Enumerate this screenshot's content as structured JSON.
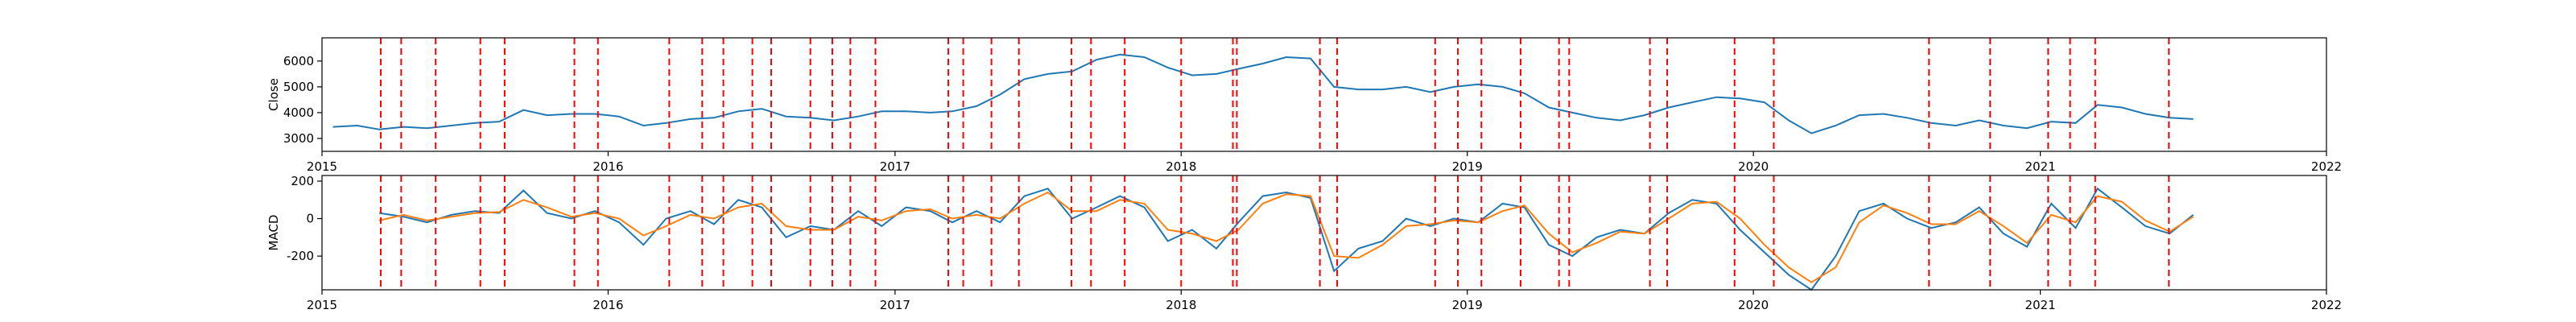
{
  "chart_data": [
    {
      "type": "line",
      "ylabel": "Close",
      "xlim": [
        "2015-01-01",
        "2022-01-01"
      ],
      "ylim": [
        2500,
        6900
      ],
      "yticks": [
        3000,
        4000,
        5000,
        6000
      ],
      "xticks": [
        "2015",
        "2016",
        "2017",
        "2018",
        "2019",
        "2020",
        "2021",
        "2022"
      ],
      "grid": false,
      "series": [
        {
          "color": "#1f77b4",
          "x": [
            "2015-01",
            "2015-02",
            "2015-03",
            "2015-04",
            "2015-05",
            "2015-06",
            "2015-07",
            "2015-08",
            "2015-09",
            "2015-10",
            "2015-11",
            "2015-12",
            "2016-01",
            "2016-02",
            "2016-03",
            "2016-04",
            "2016-05",
            "2016-06",
            "2016-07",
            "2016-08",
            "2016-09",
            "2016-10",
            "2016-11",
            "2016-12",
            "2017-01",
            "2017-02",
            "2017-03",
            "2017-04",
            "2017-05",
            "2017-06",
            "2017-07",
            "2017-08",
            "2017-09",
            "2017-10",
            "2017-11",
            "2017-12",
            "2018-01",
            "2018-02",
            "2018-03",
            "2018-04",
            "2018-05",
            "2018-06",
            "2018-07",
            "2018-08",
            "2018-09",
            "2018-10",
            "2018-11",
            "2018-12",
            "2019-01",
            "2019-02",
            "2019-03",
            "2019-04",
            "2019-05",
            "2019-06",
            "2019-07",
            "2019-08",
            "2019-09",
            "2019-10",
            "2019-11",
            "2019-12",
            "2020-01",
            "2020-02",
            "2020-03",
            "2020-04",
            "2020-05",
            "2020-06",
            "2020-07",
            "2020-08",
            "2020-09",
            "2020-10",
            "2020-11",
            "2020-12",
            "2021-01",
            "2021-02",
            "2021-03",
            "2021-04",
            "2021-05",
            "2021-06",
            "2021-07"
          ],
          "values": [
            3450,
            3500,
            3350,
            3450,
            3400,
            3500,
            3600,
            3650,
            4100,
            3900,
            3950,
            3950,
            3850,
            3500,
            3600,
            3750,
            3800,
            4050,
            4150,
            3850,
            3800,
            3700,
            3850,
            4050,
            4050,
            4000,
            4050,
            4250,
            4700,
            5300,
            5500,
            5600,
            6050,
            6250,
            6150,
            5750,
            5450,
            5500,
            5700,
            5900,
            6150,
            6100,
            5000,
            4900,
            4900,
            5000,
            4800,
            5000,
            5100,
            5000,
            4750,
            4200,
            4000,
            3800,
            3700,
            3900,
            4200,
            4400,
            4600,
            4550,
            4400,
            3700,
            3200,
            3500,
            3900,
            3950,
            3800,
            3600,
            3500,
            3700,
            3500,
            3400,
            3650,
            3600,
            4300,
            4200,
            3950,
            3800,
            3750
          ]
        }
      ],
      "vlines": [
        "2015-03-17",
        "2015-04-12",
        "2015-05-26",
        "2015-07-22",
        "2015-08-22",
        "2015-11-19",
        "2015-12-19",
        "2016-03-19",
        "2016-04-30",
        "2016-05-27",
        "2016-07-03",
        "2016-07-27",
        "2016-09-15",
        "2016-10-13",
        "2016-11-05",
        "2016-12-07",
        "2017-03-10",
        "2017-03-29",
        "2017-05-04",
        "2017-06-08",
        "2017-08-14",
        "2017-09-08",
        "2017-10-21",
        "2018-01-01",
        "2018-03-08",
        "2018-03-13",
        "2018-06-27",
        "2018-07-19",
        "2018-11-21",
        "2018-12-20",
        "2019-01-19",
        "2019-03-10",
        "2019-04-28",
        "2019-05-11",
        "2019-08-22",
        "2019-09-13",
        "2019-12-08",
        "2020-01-27",
        "2020-08-12",
        "2020-10-29",
        "2021-01-11",
        "2021-02-08",
        "2021-03-12",
        "2021-06-14"
      ],
      "vline_color": "#ff0000"
    },
    {
      "type": "line",
      "ylabel": "MACD",
      "xlim": [
        "2015-01-01",
        "2022-01-01"
      ],
      "ylim": [
        -380,
        230
      ],
      "yticks": [
        -200,
        0,
        200
      ],
      "xticks": [
        "2015",
        "2016",
        "2017",
        "2018",
        "2019",
        "2020",
        "2021",
        "2022"
      ],
      "grid": false,
      "series": [
        {
          "color": "#1f77b4",
          "x": [
            "2015-03",
            "2015-04",
            "2015-05",
            "2015-06",
            "2015-07",
            "2015-08",
            "2015-09",
            "2015-10",
            "2015-11",
            "2015-12",
            "2016-01",
            "2016-02",
            "2016-03",
            "2016-04",
            "2016-05",
            "2016-06",
            "2016-07",
            "2016-08",
            "2016-09",
            "2016-10",
            "2016-11",
            "2016-12",
            "2017-01",
            "2017-02",
            "2017-03",
            "2017-04",
            "2017-05",
            "2017-06",
            "2017-07",
            "2017-08",
            "2017-09",
            "2017-10",
            "2017-11",
            "2017-12",
            "2018-01",
            "2018-02",
            "2018-03",
            "2018-04",
            "2018-05",
            "2018-06",
            "2018-07",
            "2018-08",
            "2018-09",
            "2018-10",
            "2018-11",
            "2018-12",
            "2019-01",
            "2019-02",
            "2019-03",
            "2019-04",
            "2019-05",
            "2019-06",
            "2019-07",
            "2019-08",
            "2019-09",
            "2019-10",
            "2019-11",
            "2019-12",
            "2020-01",
            "2020-02",
            "2020-03",
            "2020-04",
            "2020-05",
            "2020-06",
            "2020-07",
            "2020-08",
            "2020-09",
            "2020-10",
            "2020-11",
            "2020-12",
            "2021-01",
            "2021-02",
            "2021-03",
            "2021-04",
            "2021-05",
            "2021-06",
            "2021-07"
          ],
          "values": [
            30,
            10,
            -20,
            20,
            40,
            30,
            150,
            30,
            0,
            40,
            -20,
            -140,
            0,
            40,
            -30,
            100,
            60,
            -100,
            -40,
            -60,
            40,
            -40,
            60,
            40,
            -20,
            40,
            -20,
            120,
            160,
            0,
            60,
            120,
            60,
            -120,
            -60,
            -160,
            -20,
            120,
            140,
            110,
            -280,
            -160,
            -120,
            0,
            -40,
            0,
            -20,
            80,
            60,
            -140,
            -200,
            -100,
            -60,
            -80,
            30,
            100,
            80,
            -60,
            -180,
            -300,
            -380,
            -200,
            40,
            80,
            0,
            -50,
            -20,
            60,
            -80,
            -150,
            80,
            -50,
            160,
            60,
            -40,
            -80,
            20
          ]
        },
        {
          "color": "#ff7f0e",
          "x": [
            "2015-03",
            "2015-04",
            "2015-05",
            "2015-06",
            "2015-07",
            "2015-08",
            "2015-09",
            "2015-10",
            "2015-11",
            "2015-12",
            "2016-01",
            "2016-02",
            "2016-03",
            "2016-04",
            "2016-05",
            "2016-06",
            "2016-07",
            "2016-08",
            "2016-09",
            "2016-10",
            "2016-11",
            "2016-12",
            "2017-01",
            "2017-02",
            "2017-03",
            "2017-04",
            "2017-05",
            "2017-06",
            "2017-07",
            "2017-08",
            "2017-09",
            "2017-10",
            "2017-11",
            "2017-12",
            "2018-01",
            "2018-02",
            "2018-03",
            "2018-04",
            "2018-05",
            "2018-06",
            "2018-07",
            "2018-08",
            "2018-09",
            "2018-10",
            "2018-11",
            "2018-12",
            "2019-01",
            "2019-02",
            "2019-03",
            "2019-04",
            "2019-05",
            "2019-06",
            "2019-07",
            "2019-08",
            "2019-09",
            "2019-10",
            "2019-11",
            "2019-12",
            "2020-01",
            "2020-02",
            "2020-03",
            "2020-04",
            "2020-05",
            "2020-06",
            "2020-07",
            "2020-08",
            "2020-09",
            "2020-10",
            "2020-11",
            "2020-12",
            "2021-01",
            "2021-02",
            "2021-03",
            "2021-04",
            "2021-05",
            "2021-06",
            "2021-07"
          ],
          "values": [
            -10,
            20,
            -10,
            10,
            30,
            35,
            100,
            60,
            10,
            30,
            0,
            -90,
            -40,
            20,
            0,
            60,
            80,
            -40,
            -60,
            -60,
            10,
            -10,
            40,
            50,
            0,
            20,
            0,
            80,
            140,
            40,
            40,
            100,
            80,
            -60,
            -80,
            -120,
            -60,
            80,
            130,
            120,
            -200,
            -210,
            -140,
            -40,
            -30,
            -10,
            -20,
            40,
            70,
            -80,
            -180,
            -130,
            -70,
            -80,
            0,
            80,
            90,
            0,
            -140,
            -260,
            -340,
            -260,
            -20,
            70,
            30,
            -30,
            -30,
            40,
            -40,
            -130,
            20,
            -20,
            120,
            90,
            -10,
            -70,
            10
          ]
        }
      ],
      "vlines": [
        "2015-03-17",
        "2015-04-12",
        "2015-05-26",
        "2015-07-22",
        "2015-08-22",
        "2015-11-19",
        "2015-12-19",
        "2016-03-19",
        "2016-04-30",
        "2016-05-27",
        "2016-07-03",
        "2016-07-27",
        "2016-09-15",
        "2016-10-13",
        "2016-11-05",
        "2016-12-07",
        "2017-03-10",
        "2017-03-29",
        "2017-05-04",
        "2017-06-08",
        "2017-08-14",
        "2017-09-08",
        "2017-10-21",
        "2018-01-01",
        "2018-03-08",
        "2018-03-13",
        "2018-06-27",
        "2018-07-19",
        "2018-11-21",
        "2018-12-20",
        "2019-01-19",
        "2019-03-10",
        "2019-04-28",
        "2019-05-11",
        "2019-08-22",
        "2019-09-13",
        "2019-12-08",
        "2020-01-27",
        "2020-08-12",
        "2020-10-29",
        "2021-01-11",
        "2021-02-08",
        "2021-03-12",
        "2021-06-14"
      ],
      "vline_color": "#ff0000"
    }
  ]
}
